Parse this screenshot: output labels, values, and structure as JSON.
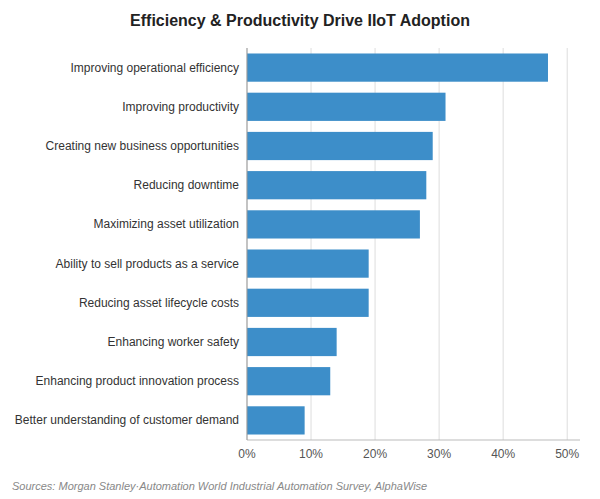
{
  "chart_data": {
    "type": "bar",
    "orientation": "horizontal",
    "title": "Efficiency & Productivity Drive IIoT Adoption",
    "categories": [
      "Better understanding of customer demand",
      "Enhancing product innovation process",
      "Enhancing worker safety",
      "Reducing asset lifecycle costs",
      "Ability to sell products as a service",
      "Maximizing asset utilization",
      "Reducing downtime",
      "Creating new business opportunities",
      "Improving productivity",
      "Improving operational efficiency"
    ],
    "values": [
      9,
      13,
      14,
      19,
      19,
      27,
      28,
      29,
      31,
      47
    ],
    "color": "#3d8ec9",
    "xlim": [
      0,
      52
    ],
    "xticks": [
      {
        "value": 0,
        "label": "0%"
      },
      {
        "value": 10,
        "label": "10%"
      },
      {
        "value": 20,
        "label": "20%"
      },
      {
        "value": 30,
        "label": "30%"
      },
      {
        "value": 40,
        "label": "40%"
      },
      {
        "value": 50,
        "label": "50%"
      }
    ],
    "grid": true,
    "annotations": [
      "Sources: Morgan Stanley·Automation World Industrial Automation Survey, AlphaWise"
    ]
  }
}
